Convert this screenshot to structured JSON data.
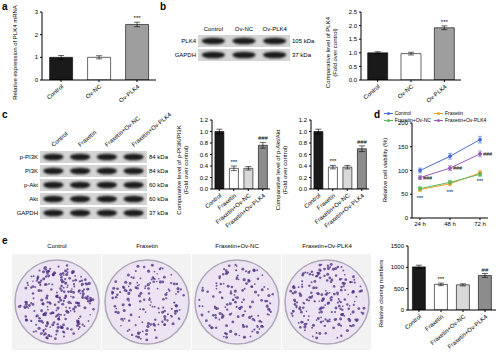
{
  "panel_labels": [
    "a",
    "b",
    "c",
    "d",
    "e"
  ],
  "chart_data": [
    {
      "type": "bar",
      "ylabel": "Relative expression of PLK4 mRNA",
      "categories": [
        "Control",
        "Ov-NC",
        "Ov-PLK4"
      ],
      "values": [
        1.0,
        1.0,
        2.45
      ],
      "errors": [
        0.08,
        0.07,
        0.1
      ],
      "annotations": [
        null,
        null,
        "***"
      ],
      "colors": [
        "#1a1a1a",
        "#ffffff",
        "#9e9e9e"
      ],
      "ylim": [
        0,
        3
      ],
      "yticks": [
        0,
        1,
        2,
        3
      ]
    },
    {
      "type": "bar",
      "ylabel": "Comparative level of PLK4 (Fold over control)",
      "categories": [
        "Control",
        "Ov-NC",
        "Ov-PLK4"
      ],
      "values": [
        1.0,
        0.97,
        1.92
      ],
      "errors": [
        0.04,
        0.05,
        0.07
      ],
      "annotations": [
        null,
        null,
        "***"
      ],
      "colors": [
        "#1a1a1a",
        "#ffffff",
        "#9e9e9e"
      ],
      "ylim": [
        0,
        2.5
      ],
      "yticks": [
        {
          "value": 0,
          "label": "0.0"
        },
        0.5,
        {
          "value": 1,
          "label": "1.0"
        },
        1.5,
        {
          "value": 2,
          "label": "2.0"
        },
        2.5
      ]
    },
    {
      "type": "bar",
      "ylabel": "Comparative level of p-PI3K/PI3K (Fold over control)",
      "categories": [
        "Control",
        "Fraxetin",
        "Fraxetin+Ov-NC",
        "Fraxetin+Ov-PLK4"
      ],
      "values": [
        1.0,
        0.36,
        0.36,
        0.76
      ],
      "errors": [
        0.04,
        0.04,
        0.03,
        0.05
      ],
      "annotations": [
        null,
        "***",
        null,
        "###"
      ],
      "colors": [
        "#1a1a1a",
        "#ffffff",
        "#d9d9d9",
        "#8c8c8c"
      ],
      "ylim": [
        0,
        1.2
      ],
      "yticks": [
        {
          "value": 0,
          "label": "0.0"
        },
        0.2,
        0.4,
        0.6,
        0.8,
        {
          "value": 1,
          "label": "1.0"
        },
        1.2
      ]
    },
    {
      "type": "bar",
      "ylabel": "Comparative level of p-Akt/Akt (Fold over control)",
      "categories": [
        "Control",
        "Fraxetin",
        "Fraxetin+Ov-NC",
        "Fraxetin+Ov-PLK4"
      ],
      "values": [
        1.0,
        0.38,
        0.38,
        0.7
      ],
      "errors": [
        0.04,
        0.03,
        0.03,
        0.05
      ],
      "annotations": [
        null,
        "***",
        null,
        "###"
      ],
      "colors": [
        "#1a1a1a",
        "#ffffff",
        "#d9d9d9",
        "#8c8c8c"
      ],
      "ylim": [
        0,
        1.2
      ],
      "yticks": [
        {
          "value": 0,
          "label": "0.0"
        },
        0.2,
        0.4,
        0.6,
        0.8,
        {
          "value": 1,
          "label": "1.0"
        },
        1.2
      ]
    },
    {
      "type": "line",
      "ylabel": "Relative cell viability (%)",
      "categories": [
        "24 h",
        "48 h",
        "72 h"
      ],
      "legend": "top",
      "ylim": [
        0,
        200
      ],
      "yticks": [
        0,
        50,
        100,
        150,
        200
      ],
      "series": [
        {
          "name": "Control",
          "color": "#4a6fd4",
          "marker": "circle",
          "values": [
            100,
            130,
            165
          ],
          "errors": [
            5,
            6,
            7
          ],
          "annotations": [
            null,
            null,
            null
          ]
        },
        {
          "name": "Fraxetin",
          "color": "#f0a030",
          "marker": "circle",
          "values": [
            60,
            72,
            95
          ],
          "errors": [
            4,
            4,
            5
          ],
          "annotations": [
            "***",
            "***",
            "***"
          ]
        },
        {
          "name": "Fraxetin+Ov-NC",
          "color": "#5cb85c",
          "marker": "circle",
          "values": [
            62,
            75,
            92
          ],
          "errors": [
            4,
            4,
            5
          ],
          "annotations": [
            null,
            null,
            null
          ]
        },
        {
          "name": "Fraxetin+Ov-PLK4",
          "color": "#9b59b6",
          "marker": "circle",
          "values": [
            85,
            105,
            135
          ],
          "errors": [
            4,
            5,
            6
          ],
          "annotations": [
            "###",
            "###",
            "###"
          ]
        }
      ]
    },
    {
      "type": "bar",
      "ylabel": "Relative cloning numbers",
      "categories": [
        "Control",
        "Fraxetin",
        "Fraxetin+Ov-NC",
        "Fraxetin+Ov-PLK4"
      ],
      "values": [
        1010,
        600,
        590,
        810
      ],
      "errors": [
        40,
        30,
        25,
        45
      ],
      "annotations": [
        null,
        "***",
        null,
        "##"
      ],
      "colors": [
        "#1a1a1a",
        "#ffffff",
        "#d9d9d9",
        "#8c8c8c"
      ],
      "ylim": [
        0,
        1500
      ],
      "yticks": [
        0,
        500,
        1000,
        1500
      ]
    }
  ],
  "blots": [
    {
      "lanes": [
        "Control",
        "Ov-NC",
        "Ov-PLK4"
      ],
      "rows": [
        {
          "protein": "PLK4",
          "size": "105 kDa"
        },
        {
          "protein": "GAPDH",
          "size": "37 kDa"
        }
      ]
    },
    {
      "lanes": [
        "Control",
        "Fraxetin",
        "Fraxetin+Ov-NC",
        "Fraxetin+Ov-PLK4"
      ],
      "rows": [
        {
          "protein": "p-PI3K",
          "size": "84 kDa"
        },
        {
          "protein": "PI3K",
          "size": "84 kDa"
        },
        {
          "protein": "p-Akt",
          "size": "60 kDa"
        },
        {
          "protein": "Akt",
          "size": "60 kDa"
        },
        {
          "protein": "GAPDH",
          "size": "37 kDa"
        }
      ]
    }
  ],
  "colony_images": {
    "labels": [
      "Control",
      "Fraxetin",
      "Fraxetin+Ov-NC",
      "Fraxetin+Ov-PLK4"
    ]
  }
}
